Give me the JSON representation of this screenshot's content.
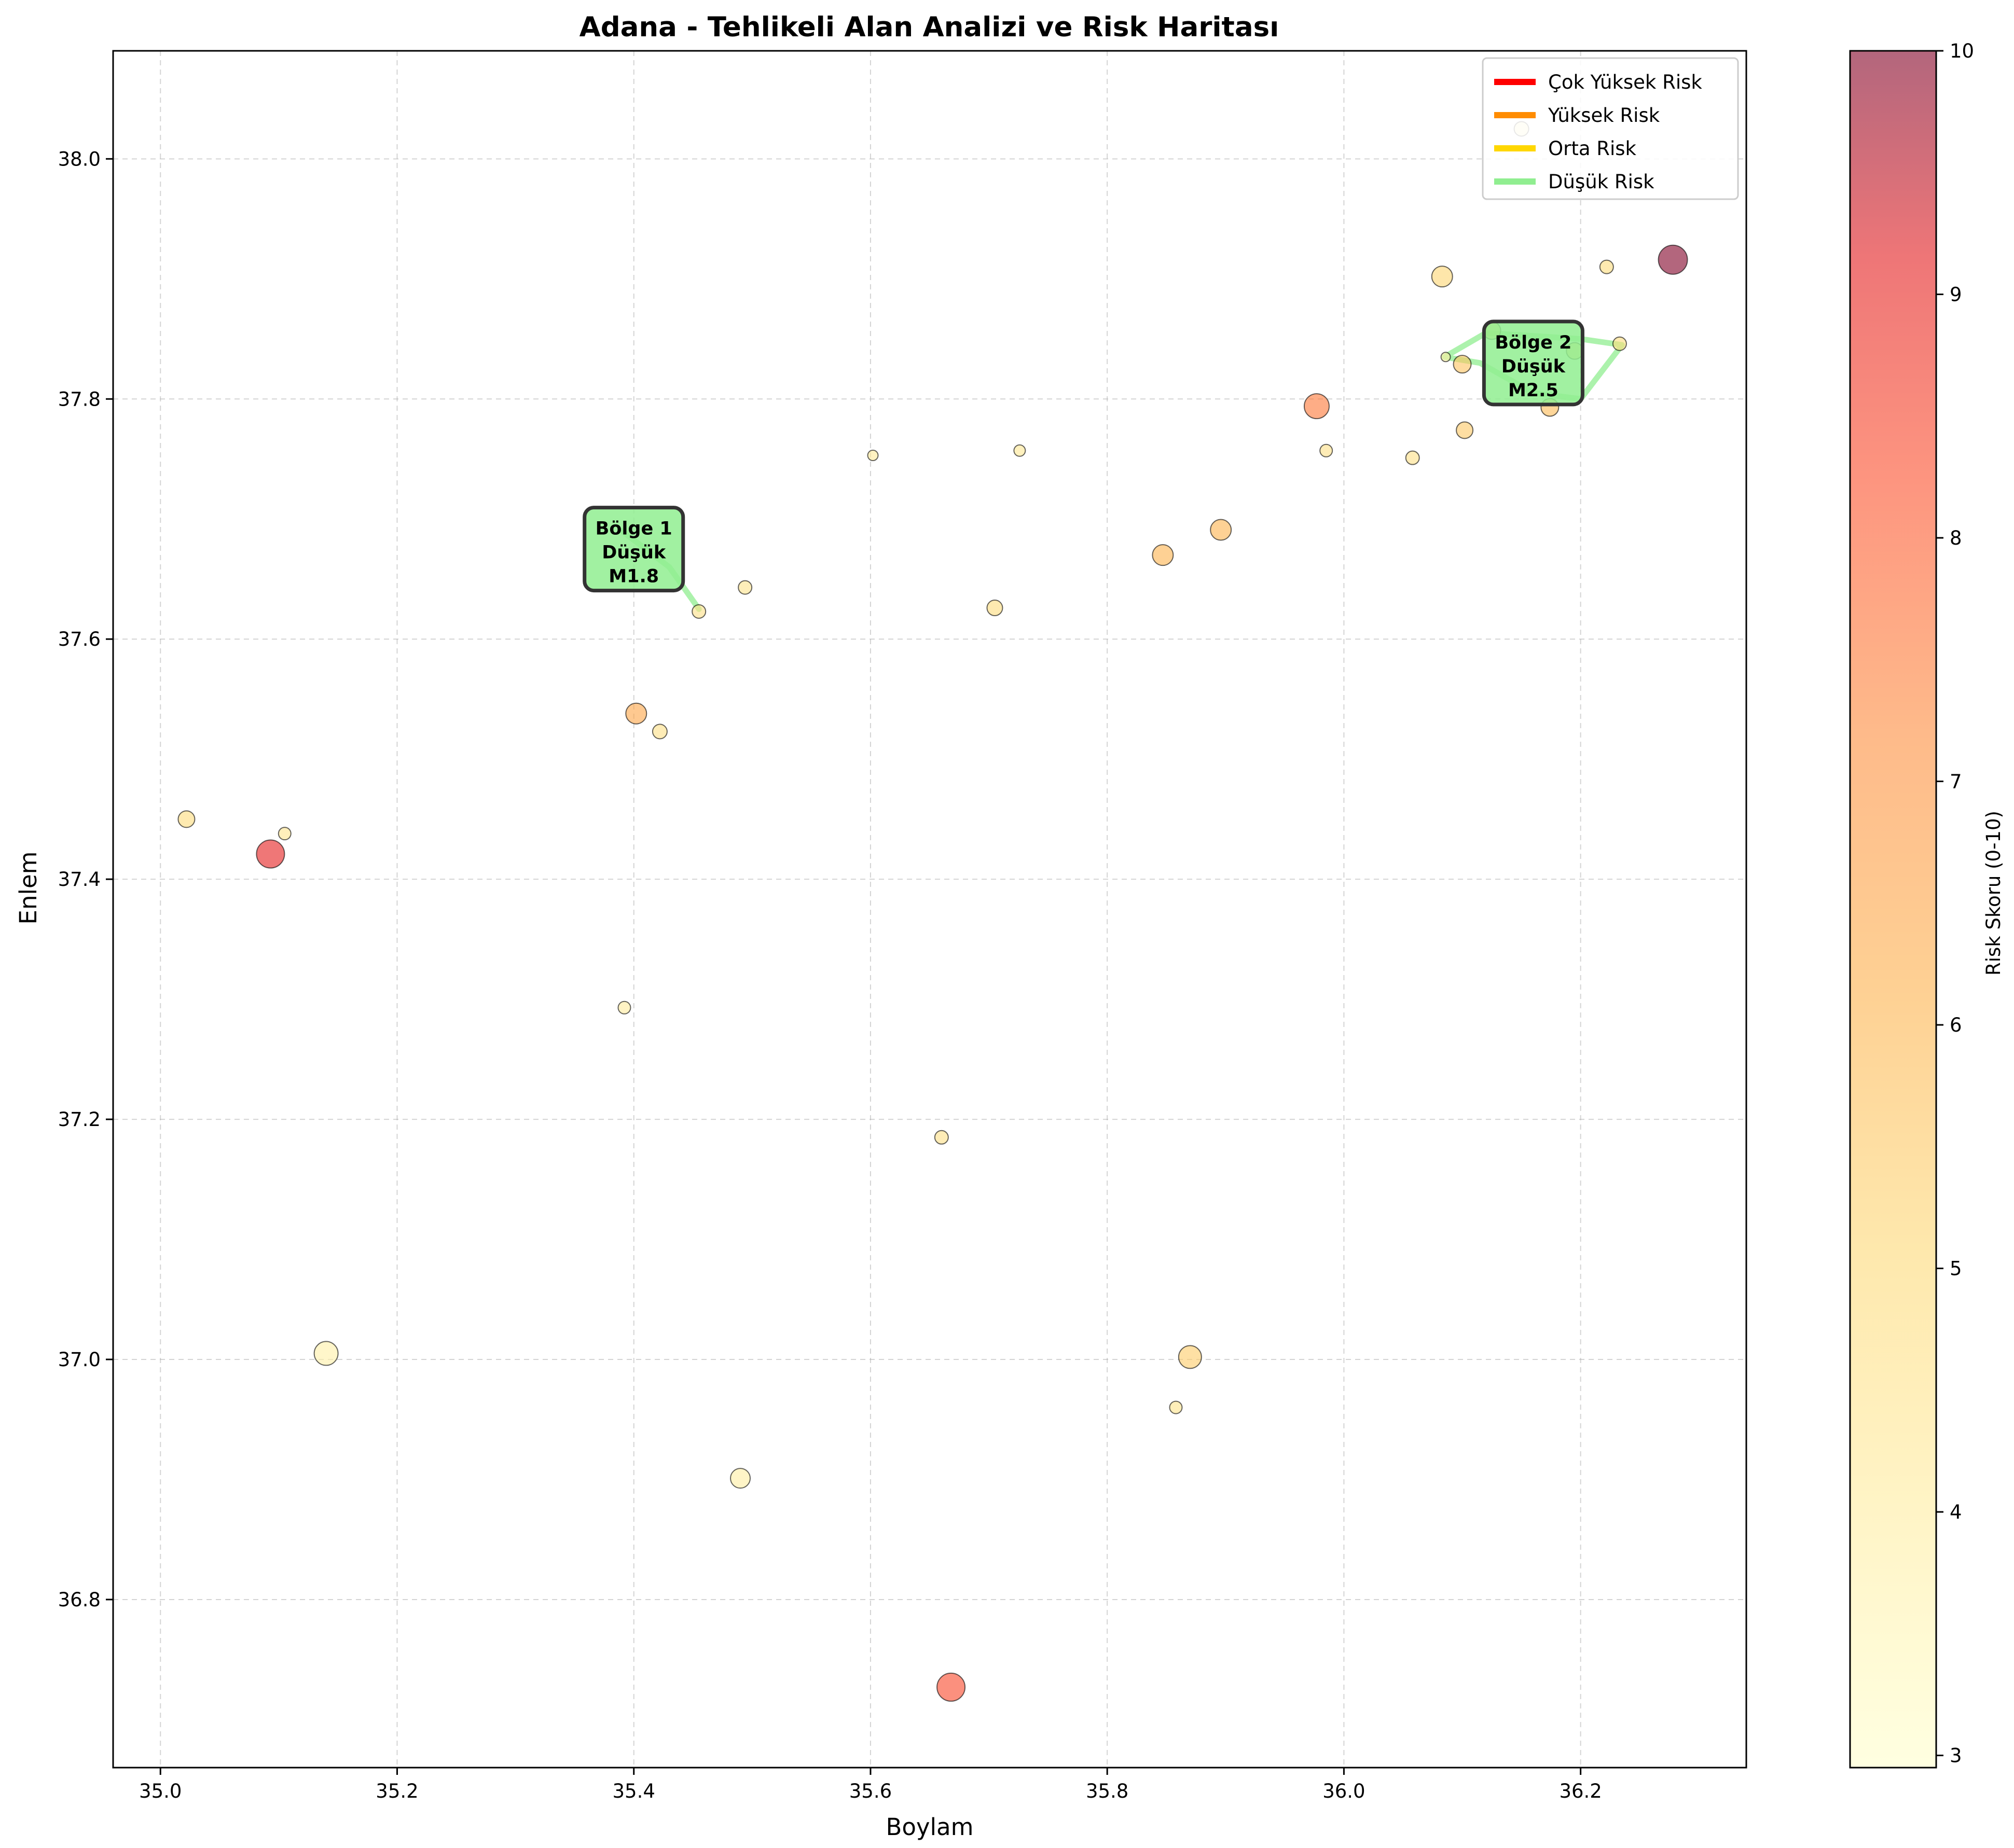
{
  "chart_data": {
    "type": "scatter",
    "title": "Adana - Tehlikeli Alan Analizi ve Risk Haritası",
    "xlabel": "Boylam",
    "ylabel": "Enlem",
    "xlim": [
      34.96,
      36.34
    ],
    "ylim": [
      36.66,
      38.09
    ],
    "xticks": [
      "35.0",
      "35.2",
      "35.4",
      "35.6",
      "35.8",
      "36.0",
      "36.2"
    ],
    "yticks": [
      "36.8",
      "37.0",
      "37.2",
      "37.4",
      "37.6",
      "37.8",
      "38.0"
    ],
    "grid": true,
    "colorbar": {
      "label": "Risk Skoru (0-10)",
      "range": [
        2.95,
        10
      ],
      "ticks": [
        "3",
        "4",
        "5",
        "6",
        "7",
        "8",
        "9",
        "10"
      ],
      "colormap": "YlOrRd",
      "alpha": 0.6
    },
    "legend": {
      "placement": "top-right",
      "entries": [
        {
          "label": "Çok Yüksek Risk",
          "color": "#ff0000"
        },
        {
          "label": "Yüksek Risk",
          "color": "#ff8c00"
        },
        {
          "label": "Orta Risk",
          "color": "#ffd700"
        },
        {
          "label": "Düşük Risk",
          "color": "#90ee90"
        }
      ]
    },
    "zones": [
      {
        "label_lines": [
          "Bölge 1",
          "Düşük",
          "M1.8"
        ],
        "risk": "Düşük Risk",
        "color": "#90ee90",
        "label_at": [
          35.4,
          37.675
        ],
        "path": [
          [
            35.39,
            37.69
          ],
          [
            35.43,
            37.66
          ],
          [
            35.455,
            37.625
          ]
        ]
      },
      {
        "label_lines": [
          "Bölge 2",
          "Düşük",
          "M2.5"
        ],
        "risk": "Düşük Risk",
        "color": "#90ee90",
        "label_at": [
          36.16,
          37.83
        ],
        "path": [
          [
            36.085,
            37.835
          ],
          [
            36.12,
            37.855
          ],
          [
            36.2,
            37.85
          ],
          [
            36.235,
            37.845
          ],
          [
            36.2,
            37.8
          ],
          [
            36.16,
            37.805
          ],
          [
            36.115,
            37.83
          ],
          [
            36.085,
            37.835
          ]
        ]
      }
    ],
    "points": [
      {
        "x": 35.022,
        "y": 37.45,
        "risk": 4.6,
        "size": 16
      },
      {
        "x": 35.093,
        "y": 37.421,
        "risk": 8.2,
        "size": 27
      },
      {
        "x": 35.105,
        "y": 37.438,
        "risk": 4.2,
        "size": 12
      },
      {
        "x": 35.14,
        "y": 37.005,
        "risk": 3.7,
        "size": 23
      },
      {
        "x": 35.392,
        "y": 37.293,
        "risk": 3.9,
        "size": 12
      },
      {
        "x": 35.402,
        "y": 37.538,
        "risk": 5.9,
        "size": 20
      },
      {
        "x": 35.422,
        "y": 37.523,
        "risk": 4.4,
        "size": 14
      },
      {
        "x": 35.455,
        "y": 37.623,
        "risk": 4.4,
        "size": 13
      },
      {
        "x": 35.494,
        "y": 37.643,
        "risk": 4.3,
        "size": 13
      },
      {
        "x": 35.49,
        "y": 36.901,
        "risk": 3.8,
        "size": 19
      },
      {
        "x": 35.602,
        "y": 37.753,
        "risk": 4.0,
        "size": 10
      },
      {
        "x": 35.66,
        "y": 37.185,
        "risk": 4.4,
        "size": 13
      },
      {
        "x": 35.668,
        "y": 36.727,
        "risk": 7.5,
        "size": 27
      },
      {
        "x": 35.705,
        "y": 37.626,
        "risk": 4.6,
        "size": 15
      },
      {
        "x": 35.726,
        "y": 37.757,
        "risk": 4.1,
        "size": 11
      },
      {
        "x": 35.847,
        "y": 37.67,
        "risk": 5.6,
        "size": 20
      },
      {
        "x": 35.858,
        "y": 36.96,
        "risk": 4.3,
        "size": 12
      },
      {
        "x": 35.87,
        "y": 37.002,
        "risk": 5.0,
        "size": 22
      },
      {
        "x": 35.896,
        "y": 37.691,
        "risk": 5.6,
        "size": 20
      },
      {
        "x": 35.977,
        "y": 37.794,
        "risk": 6.8,
        "size": 24
      },
      {
        "x": 35.985,
        "y": 37.757,
        "risk": 4.4,
        "size": 12
      },
      {
        "x": 36.058,
        "y": 37.751,
        "risk": 4.4,
        "size": 13
      },
      {
        "x": 36.083,
        "y": 37.902,
        "risk": 4.8,
        "size": 20
      },
      {
        "x": 36.086,
        "y": 37.835,
        "risk": 3.8,
        "size": 9
      },
      {
        "x": 36.1,
        "y": 37.829,
        "risk": 5.2,
        "size": 17
      },
      {
        "x": 36.102,
        "y": 37.774,
        "risk": 5.1,
        "size": 16
      },
      {
        "x": 36.125,
        "y": 37.857,
        "risk": 5.3,
        "size": 17
      },
      {
        "x": 36.15,
        "y": 38.025,
        "risk": 3.7,
        "size": 14
      },
      {
        "x": 36.174,
        "y": 37.793,
        "risk": 5.4,
        "size": 17
      },
      {
        "x": 36.195,
        "y": 37.84,
        "risk": 5.2,
        "size": 16
      },
      {
        "x": 36.222,
        "y": 37.91,
        "risk": 4.6,
        "size": 13
      },
      {
        "x": 36.233,
        "y": 37.846,
        "risk": 4.6,
        "size": 13
      },
      {
        "x": 36.278,
        "y": 37.916,
        "risk": 10.0,
        "size": 28
      }
    ]
  }
}
